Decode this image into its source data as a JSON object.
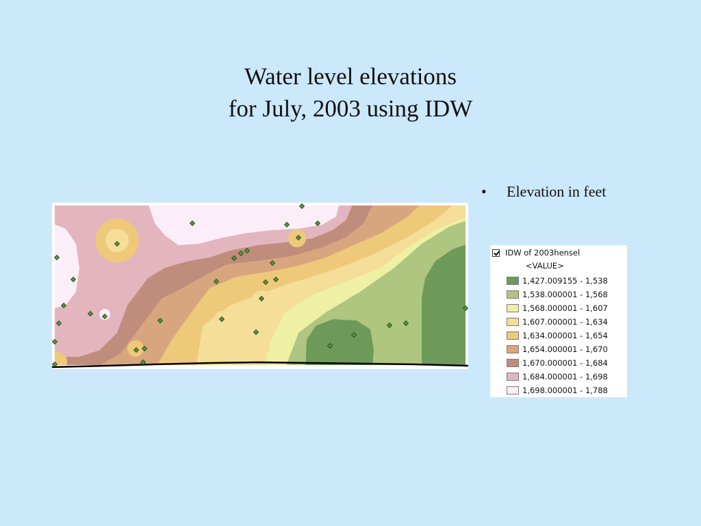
{
  "title": {
    "line1": "Water level elevations",
    "line2": "for July, 2003 using IDW"
  },
  "bullet": {
    "marker": "•",
    "text": "Elevation in feet"
  },
  "legend": {
    "layer_name": "IDW of 2003hensel",
    "layer_visible": true,
    "field_label": "<VALUE>",
    "classes": [
      {
        "label": "1,427.009155 - 1,538",
        "color": "#6e9a59"
      },
      {
        "label": "1,538.000001 - 1,568",
        "color": "#aec67f"
      },
      {
        "label": "1,568.000001 - 1,607",
        "color": "#eef0a4"
      },
      {
        "label": "1,607.000001 - 1,634",
        "color": "#f4de98"
      },
      {
        "label": "1,634.000001 - 1,654",
        "color": "#efc97a"
      },
      {
        "label": "1,654.000001 - 1,670",
        "color": "#d8a67e"
      },
      {
        "label": "1,670.000001 - 1,684",
        "color": "#c08d7c"
      },
      {
        "label": "1,684.000001 - 1,698",
        "color": "#e2b5bf"
      },
      {
        "label": "1,698.000001 - 1,788",
        "color": "#fbeef8"
      }
    ]
  },
  "chart_data": {
    "type": "heatmap",
    "description_kind": "IDW interpolated raster map with well point locations",
    "point_color": "#4f9a3c",
    "point_outline": "#1d3d14"
  }
}
